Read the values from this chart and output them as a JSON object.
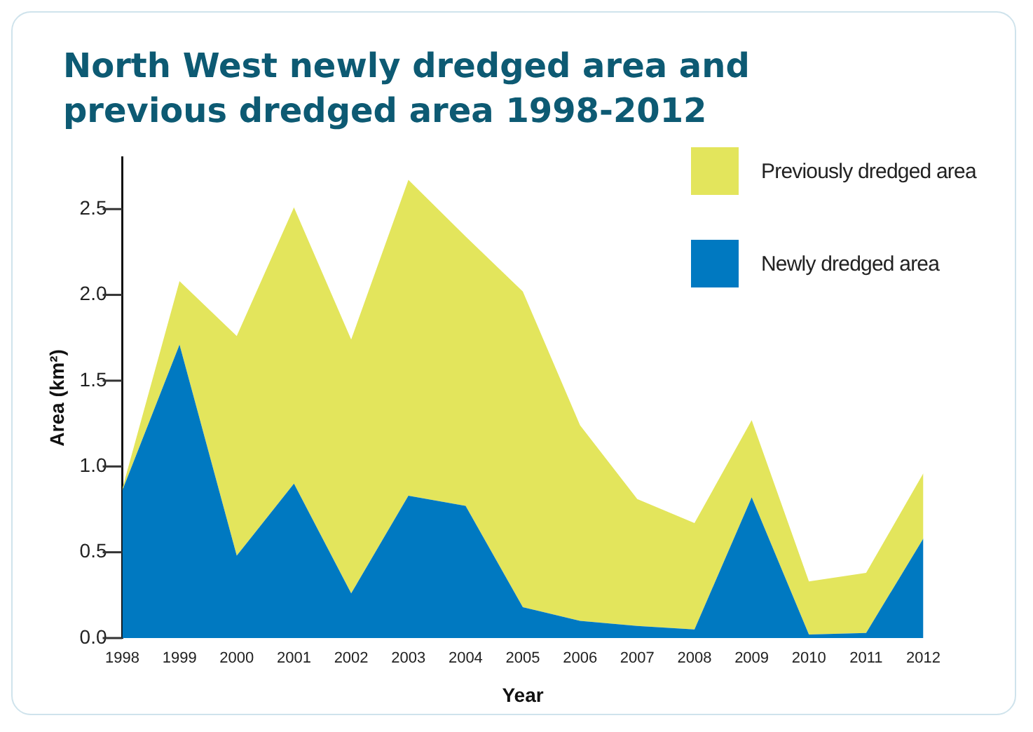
{
  "chart_data": {
    "type": "area",
    "title": "North West newly dredged area and previous dredged area 1998-2012",
    "xlabel": "Year",
    "ylabel": "Area (km²)",
    "categories": [
      "1998",
      "1999",
      "2000",
      "2001",
      "2002",
      "2003",
      "2004",
      "2005",
      "2006",
      "2007",
      "2008",
      "2009",
      "2010",
      "2011",
      "2012"
    ],
    "stacked": true,
    "series": [
      {
        "name": "Newly dredged area",
        "color": "#0079c1",
        "values": [
          0.86,
          1.71,
          0.48,
          0.9,
          0.26,
          0.83,
          0.77,
          0.18,
          0.1,
          0.07,
          0.05,
          0.82,
          0.02,
          0.03,
          0.58
        ]
      },
      {
        "name": "Previously dredged area",
        "color": "#e3e55c",
        "values": [
          0.01,
          0.37,
          1.28,
          1.61,
          1.48,
          1.84,
          1.57,
          1.84,
          1.14,
          0.74,
          0.62,
          0.45,
          0.31,
          0.35,
          0.38
        ]
      }
    ],
    "ylim": [
      0,
      2.8
    ],
    "yticks": [
      {
        "value": 0,
        "label": "0.0"
      },
      {
        "value": 0.5,
        "label": "0.5"
      },
      {
        "value": 1,
        "label": "1.0"
      },
      {
        "value": 1.5,
        "label": "1.5"
      },
      {
        "value": 2,
        "label": "2.0"
      },
      {
        "value": 2.5,
        "label": "2.5"
      }
    ],
    "grid": false,
    "legend": "top right"
  }
}
